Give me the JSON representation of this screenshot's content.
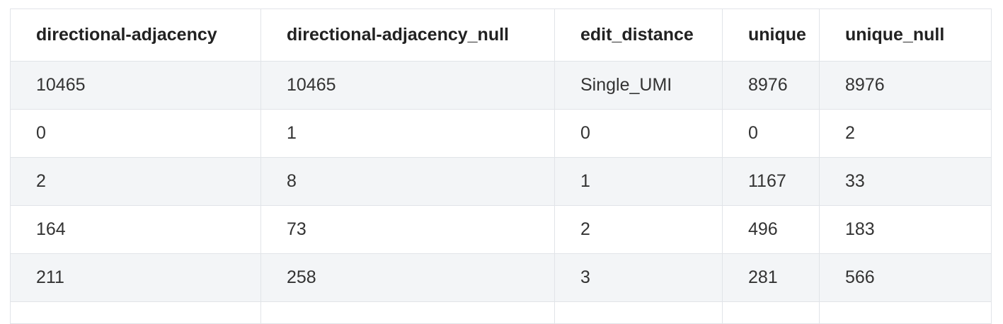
{
  "table": {
    "header": [
      "directional-adjacency",
      "directional-adjacency_null",
      "edit_distance",
      "unique",
      "unique_null"
    ],
    "rows": [
      [
        10465,
        10465,
        "Single_UMI",
        8976,
        8976
      ],
      [
        0,
        1,
        0,
        0,
        2
      ],
      [
        2,
        8,
        1,
        1167,
        33
      ],
      [
        164,
        73,
        2,
        496,
        183
      ],
      [
        211,
        258,
        3,
        281,
        566
      ]
    ]
  }
}
